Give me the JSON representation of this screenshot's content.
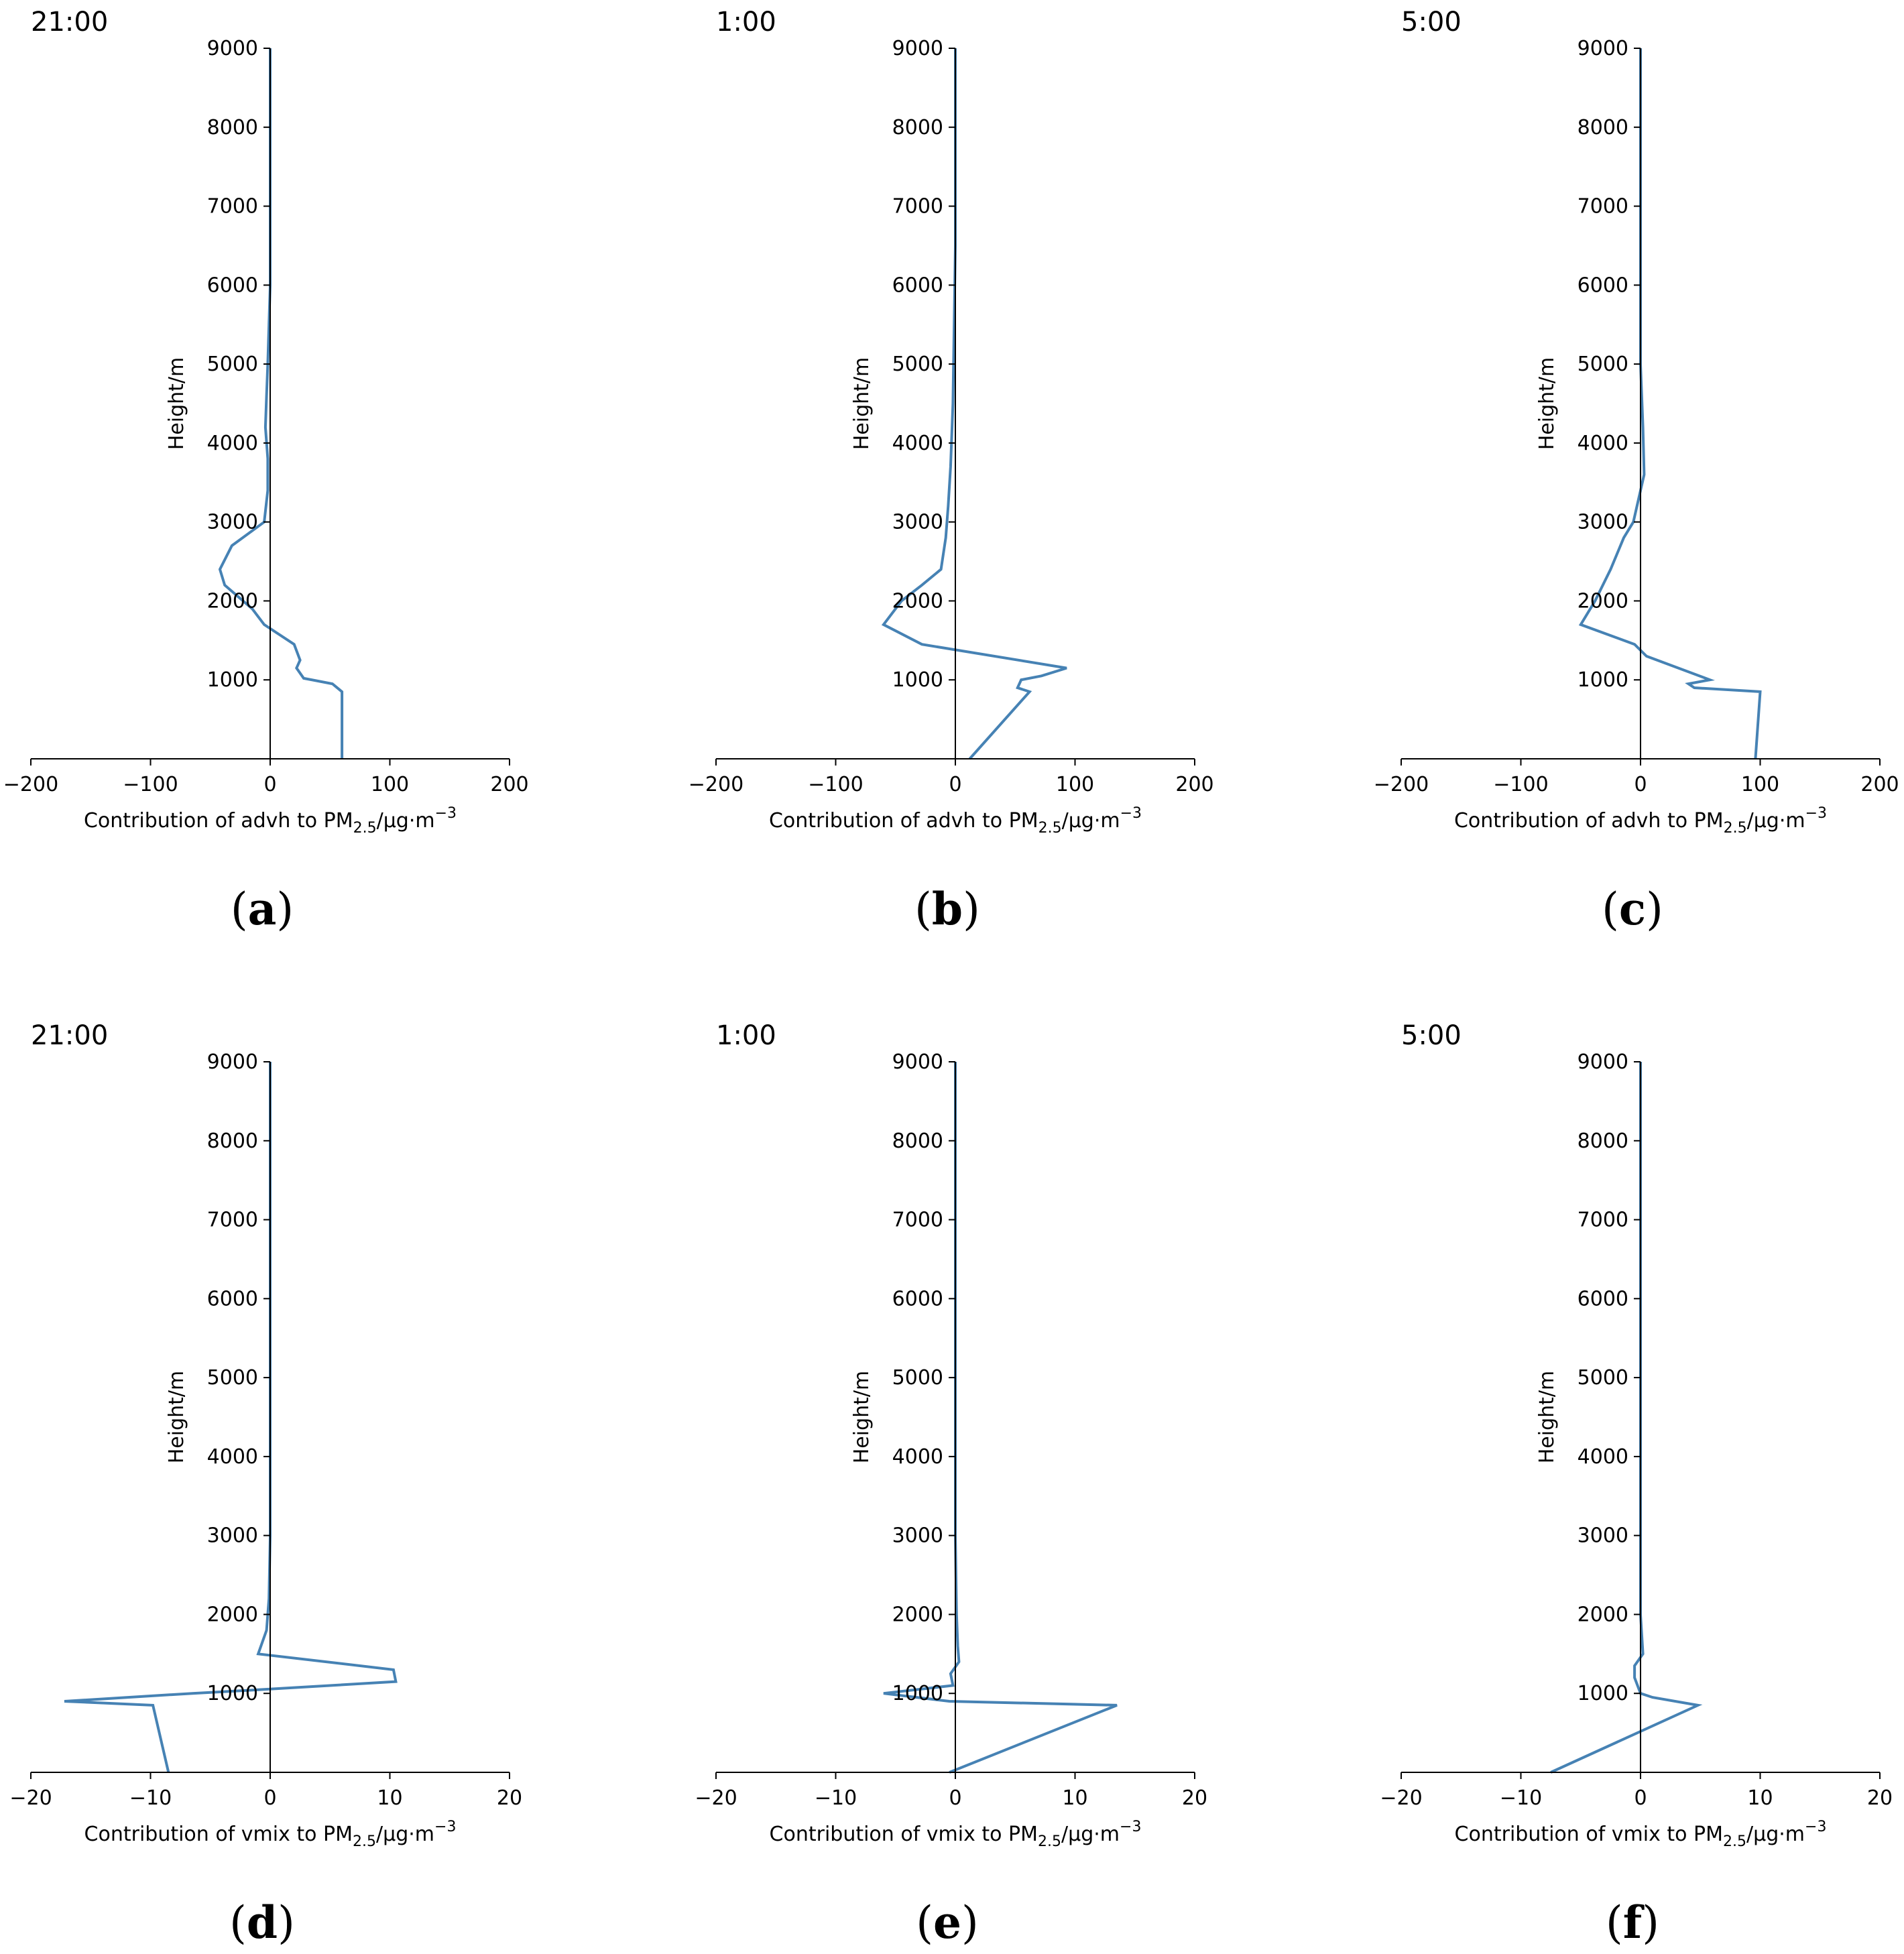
{
  "chart_data": [
    {
      "id": "a",
      "panel_label": "a",
      "time_label": "21:00",
      "type": "line",
      "xlabel_prefix": "Contribution of advh to PM",
      "xlabel_sub": "2.5",
      "xlabel_unit": "/μg·m",
      "xlabel_sup": "−3",
      "ylabel": "Height/m",
      "xlim": [
        -200,
        200
      ],
      "xticks": [
        -200,
        -100,
        0,
        100,
        200
      ],
      "xtick_labels": [
        "−200",
        "−100",
        "0",
        "100",
        "200"
      ],
      "ylim": [
        0,
        9000
      ],
      "yticks": [
        1000,
        2000,
        3000,
        4000,
        5000,
        6000,
        7000,
        8000,
        9000
      ],
      "ytick_labels": [
        "1000",
        "2000",
        "3000",
        "4000",
        "5000",
        "6000",
        "7000",
        "8000",
        "9000"
      ],
      "color": "#4682b4",
      "x": [
        60,
        60,
        52,
        28,
        22,
        25,
        20,
        -5,
        -15,
        -38,
        -42,
        -32,
        -5,
        -2,
        -2,
        -4,
        -3,
        -2,
        -1,
        0,
        0,
        0
      ],
      "y": [
        0,
        850,
        950,
        1020,
        1150,
        1250,
        1450,
        1700,
        1900,
        2200,
        2400,
        2700,
        3000,
        3400,
        3800,
        4200,
        4600,
        5000,
        5500,
        6000,
        7000,
        9000
      ]
    },
    {
      "id": "b",
      "panel_label": "b",
      "time_label": "1:00",
      "type": "line",
      "xlabel_prefix": "Contribution of advh to PM",
      "xlabel_sub": "2.5",
      "xlabel_unit": "/μg·m",
      "xlabel_sup": "−3",
      "ylabel": "Height/m",
      "xlim": [
        -200,
        200
      ],
      "xticks": [
        -200,
        -100,
        0,
        100,
        200
      ],
      "xtick_labels": [
        "−200",
        "−100",
        "0",
        "100",
        "200"
      ],
      "ylim": [
        0,
        9000
      ],
      "yticks": [
        1000,
        2000,
        3000,
        4000,
        5000,
        6000,
        7000,
        8000,
        9000
      ],
      "ytick_labels": [
        "1000",
        "2000",
        "3000",
        "4000",
        "5000",
        "6000",
        "7000",
        "8000",
        "9000"
      ],
      "color": "#4682b4",
      "x": [
        12,
        62,
        52,
        55,
        72,
        93,
        -28,
        -60,
        -45,
        -28,
        -12,
        -8,
        -6,
        -4,
        -2,
        -1,
        0,
        0
      ],
      "y": [
        0,
        850,
        900,
        1000,
        1050,
        1150,
        1450,
        1700,
        2000,
        2200,
        2400,
        2800,
        3200,
        3700,
        4500,
        5500,
        6500,
        9000
      ]
    },
    {
      "id": "c",
      "panel_label": "c",
      "time_label": "5:00",
      "type": "line",
      "xlabel_prefix": "Contribution of advh to PM",
      "xlabel_sub": "2.5",
      "xlabel_unit": "/μg·m",
      "xlabel_sup": "−3",
      "ylabel": "Height/m",
      "xlim": [
        -200,
        200
      ],
      "xticks": [
        -200,
        -100,
        0,
        100,
        200
      ],
      "xtick_labels": [
        "−200",
        "−100",
        "0",
        "100",
        "200"
      ],
      "ylim": [
        0,
        9000
      ],
      "yticks": [
        1000,
        2000,
        3000,
        4000,
        5000,
        6000,
        7000,
        8000,
        9000
      ],
      "ytick_labels": [
        "1000",
        "2000",
        "3000",
        "4000",
        "5000",
        "6000",
        "7000",
        "8000",
        "9000"
      ],
      "color": "#4682b4",
      "x": [
        96,
        100,
        45,
        40,
        58,
        5,
        -5,
        -50,
        -38,
        -25,
        -14,
        -6,
        3,
        2,
        0,
        0,
        0
      ],
      "y": [
        0,
        850,
        900,
        950,
        1000,
        1300,
        1450,
        1700,
        2000,
        2400,
        2800,
        3000,
        3600,
        4200,
        5000,
        6000,
        9000
      ]
    },
    {
      "id": "d",
      "panel_label": "d",
      "time_label": "21:00",
      "type": "line",
      "xlabel_prefix": "Contribution of vmix to PM",
      "xlabel_sub": "2.5",
      "xlabel_unit": "/μg·m",
      "xlabel_sup": "−3",
      "ylabel": "Height/m",
      "xlim": [
        -20,
        20
      ],
      "xticks": [
        -20,
        -10,
        0,
        10,
        20
      ],
      "xtick_labels": [
        "−20",
        "−10",
        "0",
        "10",
        "20"
      ],
      "ylim": [
        0,
        9000
      ],
      "yticks": [
        1000,
        2000,
        3000,
        4000,
        5000,
        6000,
        7000,
        8000,
        9000
      ],
      "ytick_labels": [
        "1000",
        "2000",
        "3000",
        "4000",
        "5000",
        "6000",
        "7000",
        "8000",
        "9000"
      ],
      "color": "#4682b4",
      "x": [
        -8.5,
        -9.8,
        -17.2,
        -6.5,
        -0.5,
        10.5,
        10.3,
        -1.0,
        -0.3,
        -0.1,
        0,
        0,
        0
      ],
      "y": [
        0,
        850,
        900,
        1000,
        1050,
        1150,
        1300,
        1500,
        1800,
        2200,
        3000,
        4000,
        9000
      ]
    },
    {
      "id": "e",
      "panel_label": "e",
      "time_label": "1:00",
      "type": "line",
      "xlabel_prefix": "Contribution of vmix to PM",
      "xlabel_sub": "2.5",
      "xlabel_unit": "/μg·m",
      "xlabel_sup": "−3",
      "ylabel": "Height/m",
      "xlim": [
        -20,
        20
      ],
      "xticks": [
        -20,
        -10,
        0,
        10,
        20
      ],
      "xtick_labels": [
        "−20",
        "−10",
        "0",
        "10",
        "20"
      ],
      "ylim": [
        0,
        9000
      ],
      "yticks": [
        1000,
        2000,
        3000,
        4000,
        5000,
        6000,
        7000,
        8000,
        9000
      ],
      "ytick_labels": [
        "1000",
        "2000",
        "3000",
        "4000",
        "5000",
        "6000",
        "7000",
        "8000",
        "9000"
      ],
      "color": "#4682b4",
      "x": [
        -0.5,
        13.5,
        -0.5,
        -6.0,
        -0.2,
        -0.4,
        0.3,
        0.2,
        0.1,
        0,
        0
      ],
      "y": [
        0,
        850,
        900,
        1000,
        1100,
        1250,
        1400,
        1600,
        2000,
        3000,
        9000
      ]
    },
    {
      "id": "f",
      "panel_label": "f",
      "time_label": "5:00",
      "type": "line",
      "xlabel_prefix": "Contribution of vmix to PM",
      "xlabel_sub": "2.5",
      "xlabel_unit": "/μg·m",
      "xlabel_sup": "−3",
      "ylabel": "Height/m",
      "xlim": [
        -20,
        20
      ],
      "xticks": [
        -20,
        -10,
        0,
        10,
        20
      ],
      "xtick_labels": [
        "−20",
        "−10",
        "0",
        "10",
        "20"
      ],
      "ylim": [
        0,
        9000
      ],
      "yticks": [
        1000,
        2000,
        3000,
        4000,
        5000,
        6000,
        7000,
        8000,
        9000
      ],
      "ytick_labels": [
        "1000",
        "2000",
        "3000",
        "4000",
        "5000",
        "6000",
        "7000",
        "8000",
        "9000"
      ],
      "color": "#4682b4",
      "x": [
        -7.5,
        4.8,
        1.0,
        0.0,
        -0.5,
        -0.5,
        0.2,
        0.0,
        0,
        0
      ],
      "y": [
        0,
        850,
        950,
        1000,
        1200,
        1350,
        1500,
        2000,
        3000,
        9000
      ]
    }
  ]
}
